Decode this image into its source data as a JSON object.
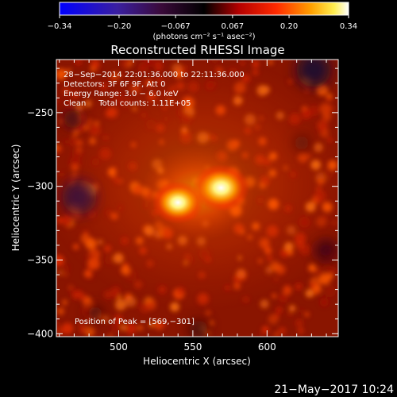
{
  "chart_data": {
    "type": "heatmap",
    "title": "Reconstructed RHESSI Image",
    "xlabel": "Heliocentric X (arcsec)",
    "ylabel": "Heliocentric Y (arcsec)",
    "xlim": [
      458,
      648
    ],
    "ylim": [
      -402,
      -214
    ],
    "x_ticks": [
      500,
      550,
      600
    ],
    "y_ticks": [
      -250,
      -300,
      -350,
      -400
    ],
    "colorbar": {
      "label": "(photons cm⁻² s⁻¹ asec⁻²)",
      "range": [
        -0.34,
        0.34
      ],
      "ticks": [
        -0.34,
        -0.2,
        -0.067,
        0.067,
        0.2,
        0.34
      ],
      "tick_labels": [
        "−0.34",
        "−0.20",
        "−0.067",
        "0.067",
        "0.20",
        "0.34"
      ],
      "colormap": "hessi heat: blue-purple-black-red-orange-yellow-white"
    },
    "annotations": [
      "28−Sep−2014 22:01:36.000 to 22:11:36.000",
      "Detectors: 3F 6F 9F, Att 0",
      "Energy Range: 3.0 − 6.0 keV",
      "Clean     Total counts: 1.11E+05",
      "Position of Peak = [569,−301]"
    ],
    "peak": {
      "x": 569,
      "y": -301
    },
    "sources": [
      {
        "x": 540,
        "y": -311,
        "intensity": 0.33,
        "sigma": 10
      },
      {
        "x": 569,
        "y": -301,
        "intensity": 0.34,
        "sigma": 11
      },
      {
        "x": 553,
        "y": -305,
        "intensity": 0.22,
        "sigma": 22
      },
      {
        "x": 555,
        "y": -298,
        "intensity": 0.1,
        "sigma": 60
      }
    ]
  },
  "footer": {
    "timestamp": "21−May−2017 10:24"
  }
}
